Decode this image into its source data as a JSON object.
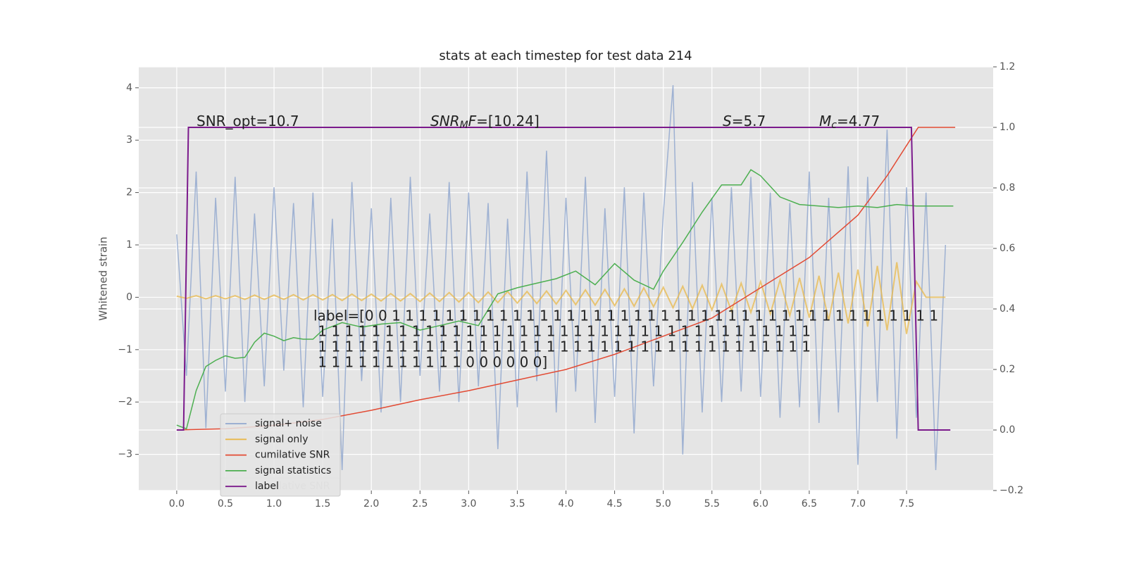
{
  "chart_data": {
    "type": "line",
    "title": "stats at each timestep for test data 214",
    "y_label": "Whitened strain",
    "xlim": [
      -0.39,
      8.39
    ],
    "ylim": [
      -3.69,
      4.4
    ],
    "y2lim": [
      -0.2,
      1.2
    ],
    "xticks": [
      {
        "value": 0,
        "label": "0.0"
      },
      {
        "value": 0.5,
        "label": "0.5"
      },
      {
        "value": 1,
        "label": "1.0"
      },
      {
        "value": 1.5,
        "label": "1.5"
      },
      {
        "value": 2,
        "label": "2.0"
      },
      {
        "value": 2.5,
        "label": "2.5"
      },
      {
        "value": 3,
        "label": "3.0"
      },
      {
        "value": 3.5,
        "label": "3.5"
      },
      {
        "value": 4,
        "label": "4.0"
      },
      {
        "value": 4.5,
        "label": "4.5"
      },
      {
        "value": 5,
        "label": "5.0"
      },
      {
        "value": 5.5,
        "label": "5.5"
      },
      {
        "value": 6,
        "label": "6.0"
      },
      {
        "value": 6.5,
        "label": "6.5"
      },
      {
        "value": 7,
        "label": "7.0"
      },
      {
        "value": 7.5,
        "label": "7.5"
      }
    ],
    "yticks": [
      {
        "value": -3,
        "label": "−3"
      },
      {
        "value": -2,
        "label": "−2"
      },
      {
        "value": -1,
        "label": "−1"
      },
      0,
      1,
      2,
      3,
      4
    ],
    "y2ticks": [
      {
        "value": -0.2,
        "label": "−0.2"
      },
      {
        "value": 0,
        "label": "0.0"
      },
      {
        "value": 0.2,
        "label": "0.2"
      },
      {
        "value": 0.4,
        "label": "0.4"
      },
      {
        "value": 0.6,
        "label": "0.6"
      },
      {
        "value": 0.8,
        "label": "0.8"
      },
      {
        "value": 1,
        "label": "1.0"
      },
      {
        "value": 1.2,
        "label": "1.2"
      }
    ],
    "grid": true,
    "legend": "lower left",
    "series": [
      {
        "name": "signal+ noise",
        "color": "#92a8cf",
        "axis": "y",
        "x": [
          0,
          0.1,
          0.2,
          0.3,
          0.4,
          0.5,
          0.6,
          0.7,
          0.8,
          0.9,
          1,
          1.1,
          1.2,
          1.3,
          1.4,
          1.5,
          1.6,
          1.7,
          1.8,
          1.9,
          2,
          2.1,
          2.2,
          2.3,
          2.4,
          2.5,
          2.6,
          2.7,
          2.8,
          2.9,
          3,
          3.1,
          3.2,
          3.3,
          3.4,
          3.5,
          3.6,
          3.7,
          3.8,
          3.9,
          4,
          4.1,
          4.2,
          4.3,
          4.4,
          4.5,
          4.6,
          4.7,
          4.8,
          4.9,
          5,
          5.1,
          5.2,
          5.3,
          5.4,
          5.5,
          5.6,
          5.7,
          5.8,
          5.9,
          6,
          6.1,
          6.2,
          6.3,
          6.4,
          6.5,
          6.6,
          6.7,
          6.8,
          6.9,
          7,
          7.1,
          7.2,
          7.3,
          7.4,
          7.5,
          7.6,
          7.7,
          7.8,
          7.9
        ],
        "values": [
          1.2,
          -1.5,
          2.4,
          -2.5,
          1.9,
          -1.8,
          2.3,
          -2.0,
          1.6,
          -1.7,
          2.1,
          -1.4,
          1.8,
          -2.1,
          2.0,
          -1.9,
          1.5,
          -3.3,
          2.2,
          -1.6,
          1.7,
          -2.2,
          1.9,
          -2.0,
          2.3,
          -1.5,
          1.6,
          -1.8,
          2.2,
          -2.0,
          2.0,
          -1.7,
          1.8,
          -2.9,
          1.5,
          -2.1,
          2.4,
          -1.6,
          2.8,
          -2.2,
          1.9,
          -1.8,
          2.3,
          -2.4,
          1.7,
          -1.9,
          2.1,
          -2.6,
          2.0,
          -1.7,
          1.6,
          4.05,
          -3.0,
          2.2,
          -2.2,
          1.9,
          -2.0,
          2.1,
          -1.8,
          2.3,
          -1.9,
          2.0,
          -2.3,
          1.8,
          -2.1,
          2.4,
          -2.4,
          1.9,
          -2.2,
          2.5,
          -3.2,
          2.3,
          -2.0,
          3.2,
          -2.7,
          2.1,
          -2.3,
          2.0,
          -3.3,
          1.0
        ]
      },
      {
        "name": "signal only",
        "color": "#e8b84a",
        "axis": "y",
        "x": [
          0,
          0.1,
          0.2,
          0.3,
          0.4,
          0.5,
          0.6,
          0.7,
          0.8,
          0.9,
          1,
          1.1,
          1.2,
          1.3,
          1.4,
          1.5,
          1.6,
          1.7,
          1.8,
          1.9,
          2,
          2.1,
          2.2,
          2.3,
          2.4,
          2.5,
          2.6,
          2.7,
          2.8,
          2.9,
          3,
          3.1,
          3.2,
          3.3,
          3.4,
          3.5,
          3.6,
          3.7,
          3.8,
          3.9,
          4,
          4.1,
          4.2,
          4.3,
          4.4,
          4.5,
          4.6,
          4.7,
          4.8,
          4.9,
          5,
          5.1,
          5.2,
          5.3,
          5.4,
          5.5,
          5.6,
          5.7,
          5.8,
          5.9,
          6,
          6.1,
          6.2,
          6.3,
          6.4,
          6.5,
          6.6,
          6.7,
          6.8,
          6.9,
          7,
          7.1,
          7.2,
          7.3,
          7.4,
          7.5,
          7.6,
          7.7,
          7.8,
          7.9
        ],
        "values": [
          0.02,
          -0.02,
          0.03,
          -0.03,
          0.03,
          -0.03,
          0.03,
          -0.04,
          0.04,
          -0.04,
          0.04,
          -0.04,
          0.05,
          -0.05,
          0.05,
          -0.05,
          0.05,
          -0.06,
          0.06,
          -0.06,
          0.06,
          -0.07,
          0.07,
          -0.07,
          0.07,
          -0.08,
          0.08,
          -0.08,
          0.09,
          -0.09,
          0.09,
          -0.1,
          0.1,
          -0.1,
          0.11,
          -0.11,
          0.11,
          -0.12,
          0.12,
          -0.13,
          0.13,
          -0.14,
          0.14,
          -0.15,
          0.15,
          -0.16,
          0.16,
          -0.17,
          0.18,
          -0.18,
          0.19,
          -0.2,
          0.21,
          -0.22,
          0.23,
          -0.24,
          0.25,
          -0.26,
          0.27,
          -0.29,
          0.3,
          -0.32,
          0.33,
          -0.35,
          0.37,
          -0.39,
          0.41,
          -0.44,
          0.47,
          -0.5,
          0.53,
          -0.56,
          0.6,
          -0.63,
          0.67,
          -0.7,
          0.3,
          0,
          0,
          0
        ]
      },
      {
        "name": "cumilative SNR",
        "color": "#e24a33",
        "axis": "y2",
        "x": [
          0,
          0.5,
          1,
          1.5,
          2,
          2.5,
          3,
          3.5,
          4,
          4.5,
          5,
          5.5,
          6,
          6.5,
          7,
          7.3,
          7.5,
          7.62,
          8
        ],
        "values": [
          0,
          0.004,
          0.015,
          0.035,
          0.065,
          0.1,
          0.13,
          0.165,
          0.2,
          0.25,
          0.31,
          0.37,
          0.47,
          0.57,
          0.71,
          0.84,
          0.94,
          1.0,
          1.0
        ]
      },
      {
        "name": "signal statistics",
        "color": "#4caf50",
        "axis": "y2",
        "x": [
          0,
          0.1,
          0.2,
          0.3,
          0.4,
          0.5,
          0.6,
          0.7,
          0.8,
          0.9,
          1,
          1.1,
          1.2,
          1.3,
          1.4,
          1.5,
          1.7,
          1.9,
          2.1,
          2.3,
          2.5,
          2.7,
          2.9,
          3.1,
          3.3,
          3.5,
          3.7,
          3.9,
          4.1,
          4.3,
          4.5,
          4.7,
          4.9,
          5,
          5.2,
          5.4,
          5.6,
          5.8,
          5.9,
          6,
          6.2,
          6.4,
          6.6,
          6.8,
          7,
          7.2,
          7.4,
          7.6,
          7.8,
          7.98
        ],
        "values": [
          0.016,
          0.004,
          0.13,
          0.21,
          0.23,
          0.245,
          0.237,
          0.24,
          0.29,
          0.32,
          0.31,
          0.295,
          0.305,
          0.3,
          0.3,
          0.33,
          0.355,
          0.34,
          0.35,
          0.355,
          0.33,
          0.345,
          0.36,
          0.345,
          0.45,
          0.47,
          0.485,
          0.5,
          0.525,
          0.48,
          0.55,
          0.495,
          0.465,
          0.525,
          0.62,
          0.72,
          0.81,
          0.81,
          0.86,
          0.84,
          0.77,
          0.745,
          0.74,
          0.735,
          0.74,
          0.735,
          0.745,
          0.74,
          0.74,
          0.74
        ]
      },
      {
        "name": "label",
        "color": "#7b1a8c",
        "axis": "y2",
        "x": [
          0,
          0.07,
          0.12,
          7.55,
          7.62,
          7.95
        ],
        "values": [
          0,
          0,
          1,
          1,
          0,
          0
        ]
      }
    ],
    "annotations": [
      {
        "segments": [
          {
            "text": "SNR_opt=10.7"
          }
        ]
      },
      {
        "segments": [
          {
            "text": "SNR",
            "italic": true
          },
          {
            "text": "M",
            "italic": true,
            "sub": true
          },
          {
            "text": "F",
            "italic": true
          },
          {
            "text": "=[10.24]"
          }
        ]
      },
      {
        "segments": [
          {
            "text": "S",
            "italic": true
          },
          {
            "text": "=5.7"
          }
        ]
      },
      {
        "segments": [
          {
            "text": "M",
            "italic": true
          },
          {
            "text": "c",
            "italic": true,
            "sub": true
          },
          {
            "text": "=4.77"
          }
        ]
      },
      {
        "lines": [
          "label=[0 0 1 1 1 1 1 1 1 1 1 1 1 1 1 1 1 1 1 1 1 1 1 1 1 1 1 1 1 1 1 1 1 1 1 1 1 1 1 1 1 1 1",
          " 1 1 1 1 1 1 1 1 1 1 1 1 1 1 1 1 1 1 1 1 1 1 1 1 1 1 1 1 1 1 1 1 1 1 1 1 1",
          " 1 1 1 1 1 1 1 1 1 1 1 1 1 1 1 1 1 1 1 1 1 1 1 1 1 1 1 1 1 1 1 1 1 1 1 1 1",
          " 1 1 1 1 1 1 1 1 1 1 1 0 0 0 0 0 0]"
        ]
      }
    ]
  }
}
